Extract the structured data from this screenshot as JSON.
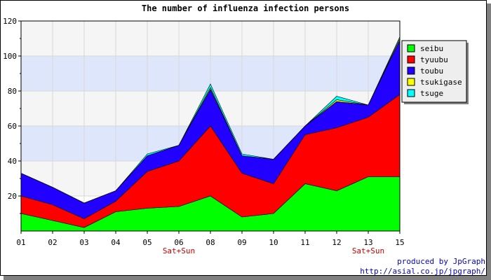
{
  "chart_data": {
    "type": "area",
    "stacked": true,
    "title": "The number of influenza infection persons",
    "categories": [
      "01",
      "02",
      "03",
      "04",
      "05",
      "06",
      "08",
      "09",
      "10",
      "11",
      "12",
      "13",
      "15"
    ],
    "weekend_notes": [
      {
        "index": 5,
        "text": "Sat+Sun"
      },
      {
        "index": 11,
        "text": "Sat+Sun"
      }
    ],
    "ylim": [
      0,
      120
    ],
    "yticks": [
      20,
      40,
      60,
      80,
      100,
      120
    ],
    "grid": true,
    "legend_position": "right",
    "series": [
      {
        "name": "seibu",
        "color": "#00ff00",
        "values": [
          10,
          6,
          2,
          11,
          13,
          14,
          20,
          8,
          10,
          27,
          23,
          31,
          31
        ]
      },
      {
        "name": "tyuubu",
        "color": "#ff0000",
        "values": [
          10,
          9,
          5,
          6,
          21,
          26,
          40,
          25,
          17,
          28,
          36,
          34,
          47
        ]
      },
      {
        "name": "toubu",
        "color": "#2200ff",
        "values": [
          13,
          10,
          9,
          6,
          9,
          9,
          21,
          10,
          14,
          5,
          15,
          7,
          31
        ]
      },
      {
        "name": "tsukigase",
        "color": "#ffff00",
        "values": [
          0,
          0,
          0,
          0,
          0,
          0,
          1,
          0,
          0,
          0,
          1,
          0,
          1
        ]
      },
      {
        "name": "tsuge",
        "color": "#00ffff",
        "values": [
          0,
          0,
          0,
          0,
          1,
          0,
          2,
          1,
          0,
          0,
          2,
          0,
          1
        ]
      }
    ]
  },
  "credits": {
    "line1": "produced by JpGraph",
    "line2": "http://asial.co.jp/jpgraph/"
  }
}
